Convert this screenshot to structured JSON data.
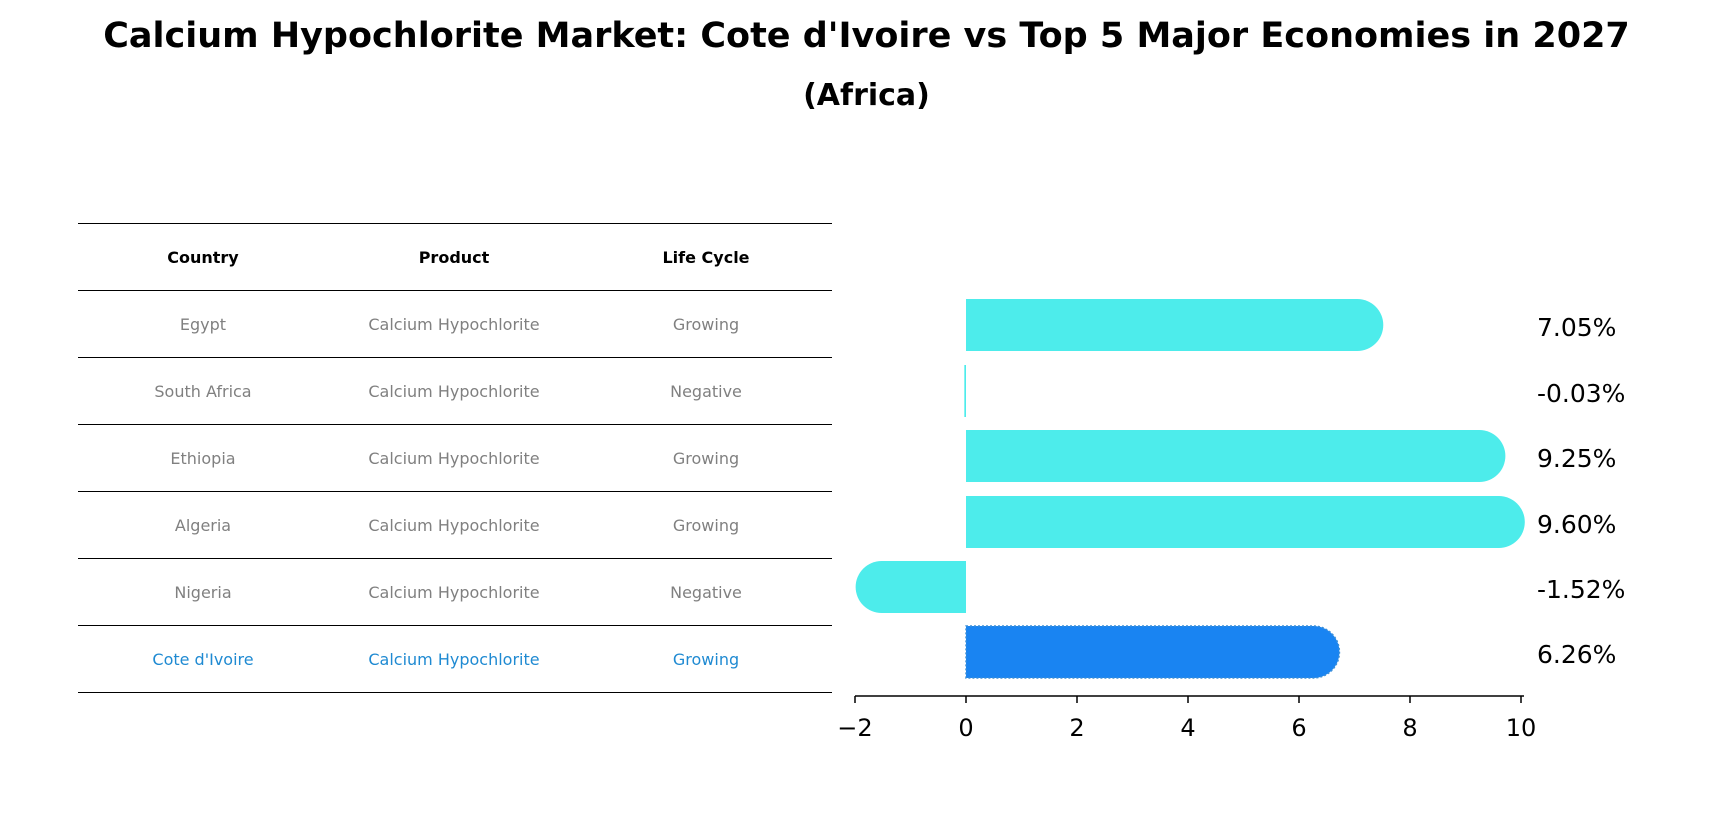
{
  "title": "Calcium Hypochlorite Market: Cote d'Ivoire vs Top 5 Major Economies in 2027",
  "subtitle": "(Africa)",
  "table": {
    "headers": [
      "Country",
      "Product",
      "Life Cycle"
    ],
    "rows": [
      [
        "Egypt",
        "Calcium Hypochlorite",
        "Growing"
      ],
      [
        "South Africa",
        "Calcium Hypochlorite",
        "Negative"
      ],
      [
        "Ethiopia",
        "Calcium Hypochlorite",
        "Growing"
      ],
      [
        "Algeria",
        "Calcium Hypochlorite",
        "Growing"
      ],
      [
        "Nigeria",
        "Calcium Hypochlorite",
        "Negative"
      ],
      [
        "Cote d'Ivoire",
        "Calcium Hypochlorite",
        "Growing"
      ]
    ]
  },
  "chart_data": {
    "type": "bar",
    "orientation": "horizontal",
    "categories": [
      "Egypt",
      "South Africa",
      "Ethiopia",
      "Algeria",
      "Nigeria",
      "Cote d'Ivoire"
    ],
    "values": [
      7.05,
      -0.03,
      9.25,
      9.6,
      -1.52,
      6.26
    ],
    "value_labels": [
      "7.05%",
      "-0.03%",
      "9.25%",
      "9.60%",
      "-1.52%",
      "6.26%"
    ],
    "xlim": [
      -2,
      10
    ],
    "xticks": [
      -2,
      0,
      2,
      4,
      6,
      8,
      10
    ],
    "xtick_labels": [
      "−2",
      "0",
      "2",
      "4",
      "6",
      "8",
      "10"
    ],
    "colors": {
      "default": "#4deceb",
      "highlight": "#1984f2"
    },
    "highlight_index": 5,
    "grid": false
  }
}
